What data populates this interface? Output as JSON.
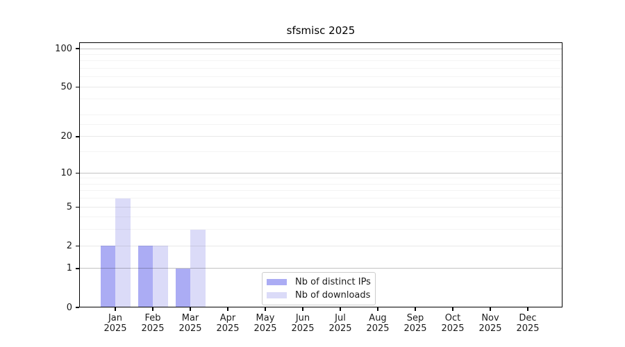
{
  "chart_data": {
    "type": "bar",
    "title": "sfsmisc 2025",
    "xlabel": "",
    "ylabel": "",
    "categories": [
      "Jan 2025",
      "Feb 2025",
      "Mar 2025",
      "Apr 2025",
      "May 2025",
      "Jun 2025",
      "Jul 2025",
      "Aug 2025",
      "Sep 2025",
      "Oct 2025",
      "Nov 2025",
      "Dec 2025"
    ],
    "series": [
      {
        "name": "Nb of distinct IPs",
        "color": "#abacf4",
        "values": [
          2,
          2,
          1,
          0,
          0,
          0,
          0,
          0,
          0,
          0,
          0,
          0
        ]
      },
      {
        "name": "Nb of downloads",
        "color": "#dbdbf8",
        "values": [
          6,
          2,
          3,
          0,
          0,
          0,
          0,
          0,
          0,
          0,
          0,
          0
        ]
      }
    ],
    "yscale": "log1p",
    "ylim": [
      0,
      112
    ],
    "y_major_ticks": [
      0,
      1,
      2,
      5,
      10,
      20,
      50,
      100
    ],
    "y_minor_gridlines": [
      3,
      4,
      6,
      7,
      8,
      9,
      15,
      25,
      30,
      40,
      60,
      70,
      80,
      90
    ],
    "emphasized_gridlines": [
      1,
      10,
      100
    ],
    "grid": true,
    "legend_position": "lower center"
  },
  "colors": {
    "axis": "#000000",
    "text": "#1a1a1a",
    "grid_strong": "rgba(0,0,0,0.24)",
    "grid_major": "rgba(0,0,0,0.09)",
    "grid_minor": "rgba(0,0,0,0.045)",
    "background": "#ffffff"
  }
}
